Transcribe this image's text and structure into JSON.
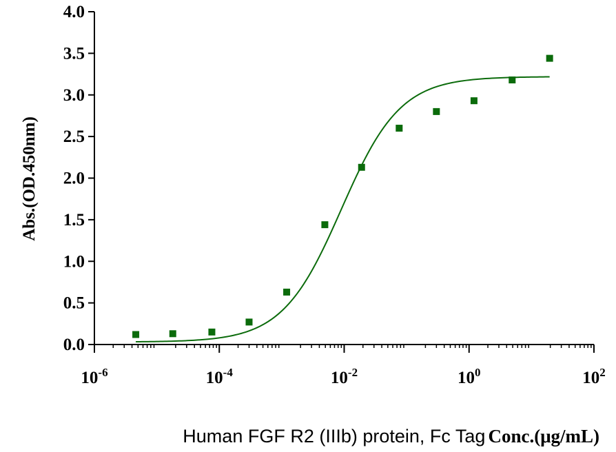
{
  "chart_data": {
    "type": "scatter",
    "title": "",
    "xscale": "log",
    "xlim": [
      1e-06,
      100
    ],
    "ylim": [
      0,
      4.0
    ],
    "grid": false,
    "colors": {
      "series": "#0b6b0b",
      "axis": "#000000"
    },
    "ylabel": "Abs.(OD.450nm)",
    "xlabel": {
      "part1": "Human FGF R2 (IIIb) protein, Fc Tag",
      "part2": "Conc.(μg/mL)"
    },
    "yticks": [
      "0.0",
      "0.5",
      "1.0",
      "1.5",
      "2.0",
      "2.5",
      "3.0",
      "3.5",
      "4.0"
    ],
    "xticks": [
      {
        "base": "10",
        "exp": "-6"
      },
      {
        "base": "10",
        "exp": "-4"
      },
      {
        "base": "10",
        "exp": "-2"
      },
      {
        "base": "10",
        "exp": "0"
      },
      {
        "base": "10",
        "exp": "2"
      }
    ],
    "series": [
      {
        "x": [
          4.6e-06,
          1.8e-05,
          7.6e-05,
          0.0003,
          0.0012,
          0.0049,
          0.019,
          0.076,
          0.3,
          1.2,
          4.9,
          19.5
        ],
        "y": [
          0.12,
          0.13,
          0.15,
          0.27,
          0.63,
          1.44,
          2.13,
          2.6,
          2.8,
          2.93,
          3.18,
          3.44
        ]
      }
    ],
    "fit": {
      "model": "4PL",
      "bottom": 0.03,
      "top": 3.22,
      "ec50": 0.009,
      "hill": 0.92,
      "x_range": [
        4.6e-06,
        19.5
      ]
    }
  }
}
